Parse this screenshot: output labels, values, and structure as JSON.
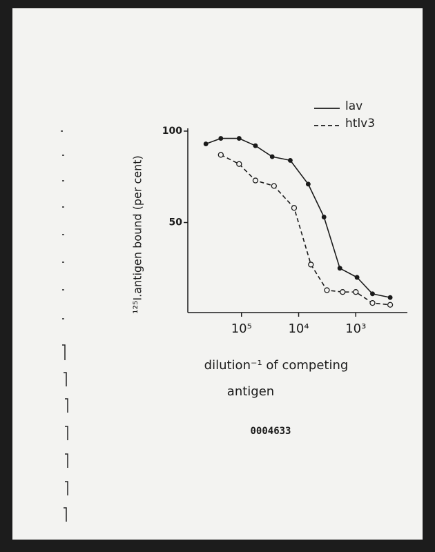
{
  "chart_data": {
    "type": "line",
    "xlabel": "dilution⁻¹ of competing antigen",
    "ylabel": "¹²⁵I.antigen bound (per cent)",
    "xscale": "log",
    "xlim": [
      870000,
      125
    ],
    "xticks": [
      {
        "value": 100000,
        "label": "10⁵"
      },
      {
        "value": 10000,
        "label": "10⁴"
      },
      {
        "value": 1000,
        "label": "10³"
      }
    ],
    "ylim": [
      0,
      100
    ],
    "yticks": [
      50,
      100
    ],
    "legend": "upper right",
    "series": [
      {
        "name": "lav",
        "color": "#1a1a1a",
        "line_style": "solid",
        "marker": "filled",
        "x": [
          420000,
          230000,
          110000,
          57000,
          29000,
          14000,
          6800,
          3600,
          1900,
          950,
          510,
          250
        ],
        "values": [
          93,
          96,
          96,
          92,
          86,
          84,
          71,
          53,
          25,
          20,
          11,
          9
        ]
      },
      {
        "name": "htlv3",
        "color": "#1a1a1a",
        "line_style": "dashed",
        "marker": "open",
        "x": [
          230000,
          110000,
          57000,
          27000,
          12000,
          6100,
          3200,
          1700,
          1000,
          510,
          250
        ],
        "values": [
          87,
          82,
          73,
          70,
          58,
          27,
          13,
          12,
          12,
          6,
          5
        ]
      }
    ]
  },
  "document_number": "0004633"
}
